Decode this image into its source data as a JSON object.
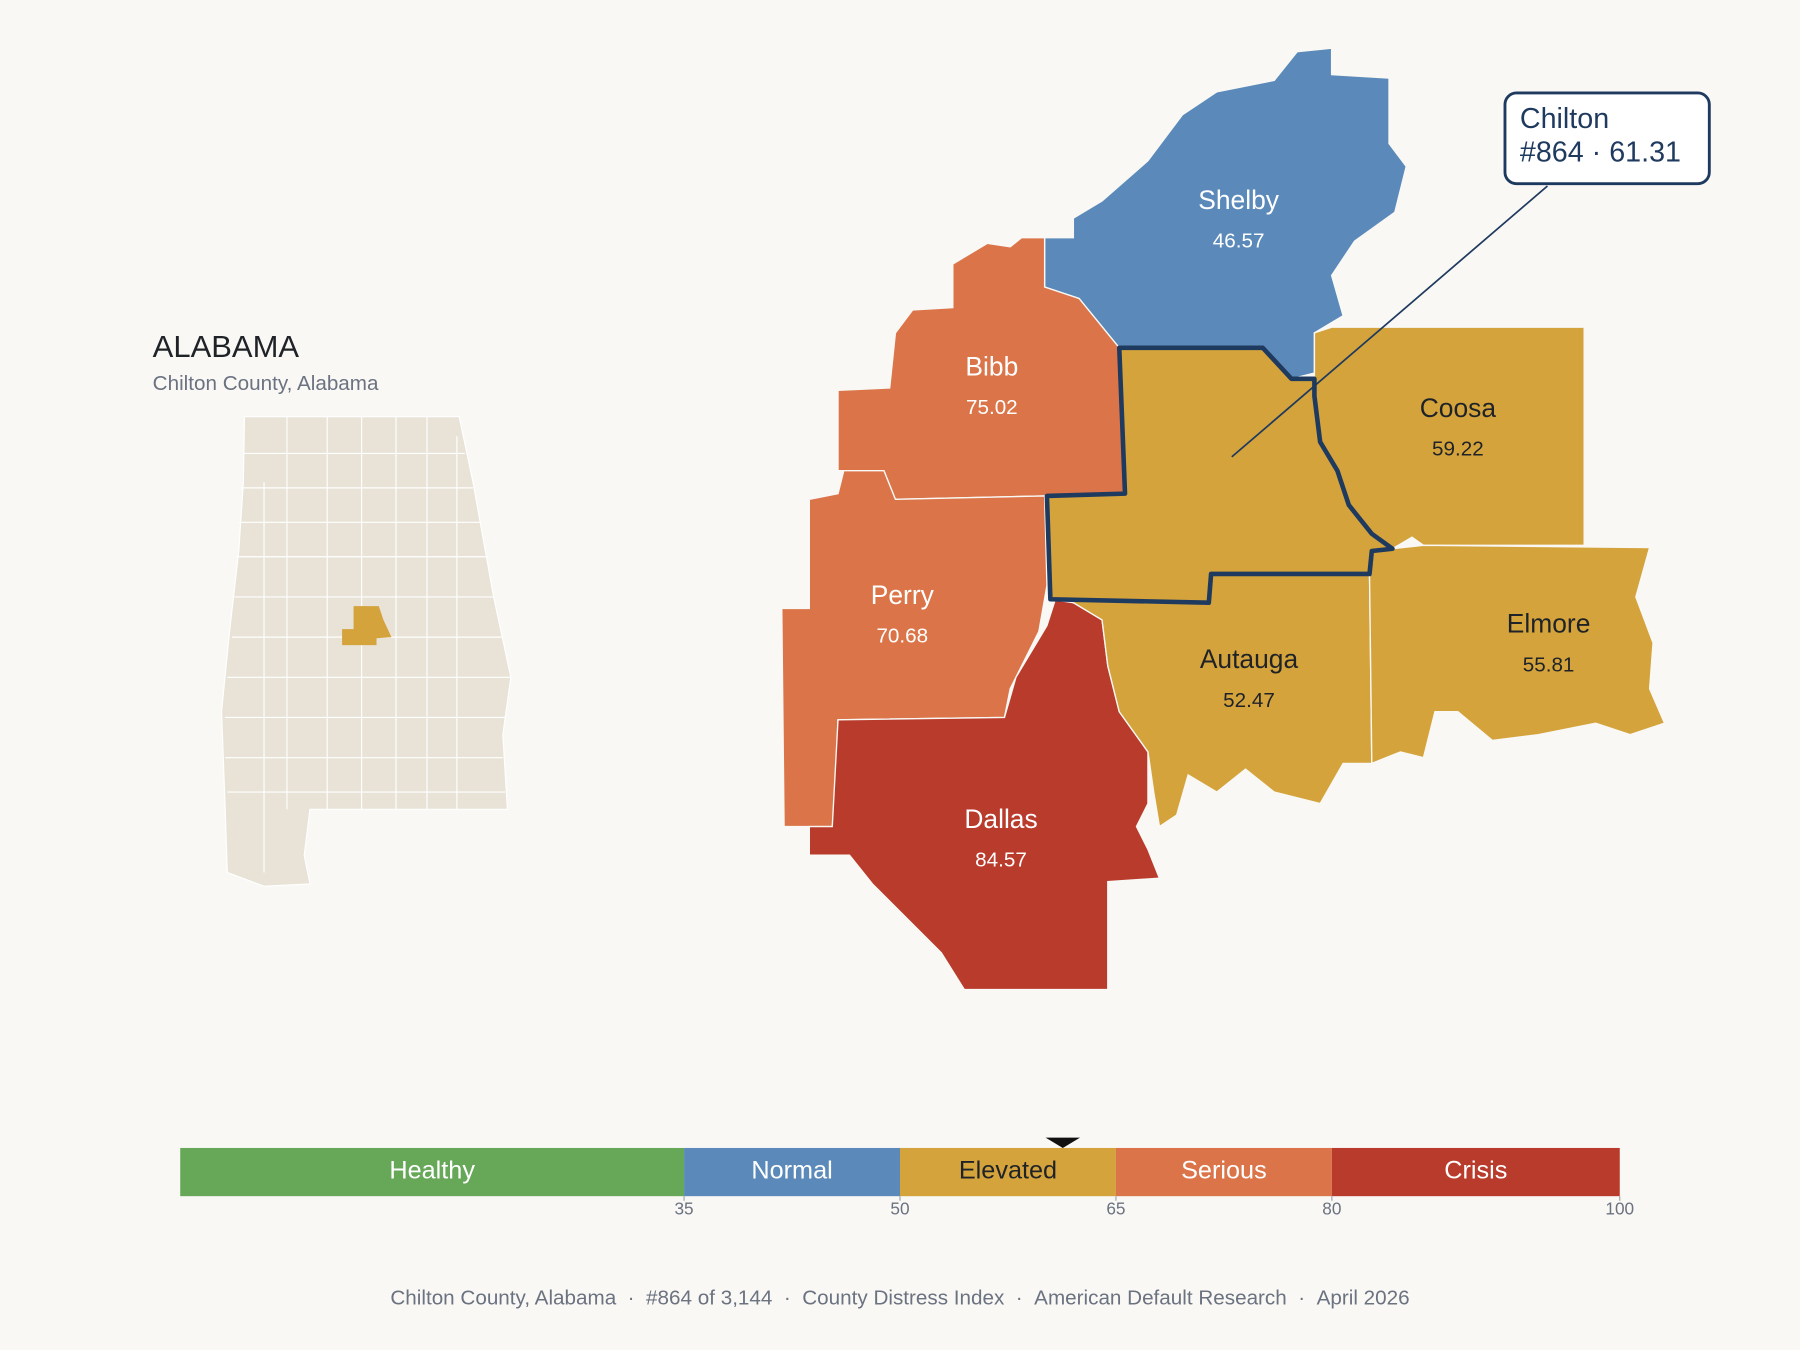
{
  "header": {
    "title": "ALABAMA",
    "subtitle": "Chilton County, Alabama"
  },
  "map": {
    "focus": {
      "name": "Chilton",
      "label": "#864 · 61.31",
      "value": 61.31,
      "outline_color": "#1f3a5f"
    },
    "counties": [
      {
        "name": "Shelby",
        "value": 46.57
      },
      {
        "name": "Bibb",
        "value": 75.02
      },
      {
        "name": "Perry",
        "value": 70.68
      },
      {
        "name": "Dallas",
        "value": 84.57
      },
      {
        "name": "Autauga",
        "value": 52.47
      },
      {
        "name": "Coosa",
        "value": 59.22
      },
      {
        "name": "Elmore",
        "value": 55.81
      }
    ]
  },
  "scale": {
    "lim": [
      0,
      100
    ],
    "ticks": [
      35,
      50,
      65,
      80,
      100
    ],
    "bands": [
      {
        "name": "Healthy",
        "color": "#67a758",
        "label_color": "#ffffff"
      },
      {
        "name": "Normal",
        "color": "#5b8aba",
        "label_color": "#ffffff"
      },
      {
        "name": "Elevated",
        "color": "#d4a33b",
        "label_color": "#1f2328"
      },
      {
        "name": "Serious",
        "color": "#db7549",
        "label_color": "#ffffff"
      },
      {
        "name": "Crisis",
        "color": "#b93b2c",
        "label_color": "#ffffff"
      }
    ]
  },
  "footer": {
    "items": [
      "Chilton County, Alabama",
      "#864 of 3,144",
      "County Distress Index",
      "American Default Research",
      "April 2026"
    ],
    "separator": "·"
  }
}
